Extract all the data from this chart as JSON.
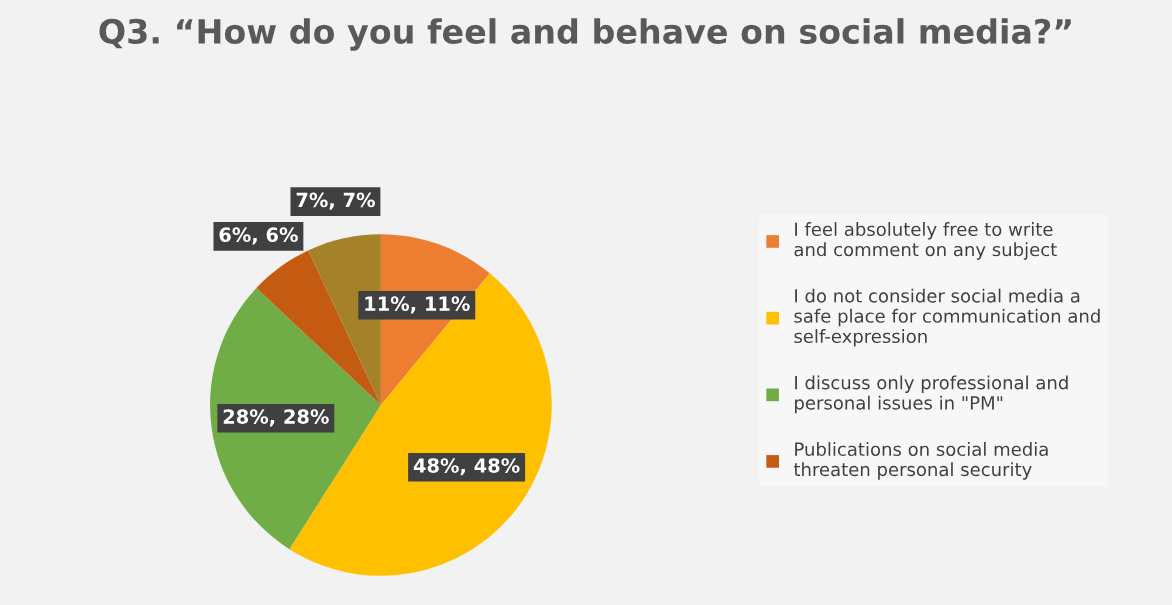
{
  "chart_data": {
    "type": "pie",
    "title": "Q3. “How do you feel and behave on social media?”",
    "categories": [
      "I feel absolutely free to write and comment on any subject",
      "I do not consider social media a safe place for communication and self-expression",
      "I discuss only professional and personal issues in \"PM\"",
      "Publications on social media threaten personal security",
      null
    ],
    "values": [
      11,
      48,
      28,
      6,
      7
    ],
    "colors": [
      "#ed7d31",
      "#ffc000",
      "#70ad47",
      "#c55a11",
      "#a5822a"
    ],
    "value_labels": [
      "11%, 11%",
      "48%, 48%",
      "28%, 28%",
      "6%, 6%",
      "7%, 7%"
    ],
    "legend": "right"
  }
}
